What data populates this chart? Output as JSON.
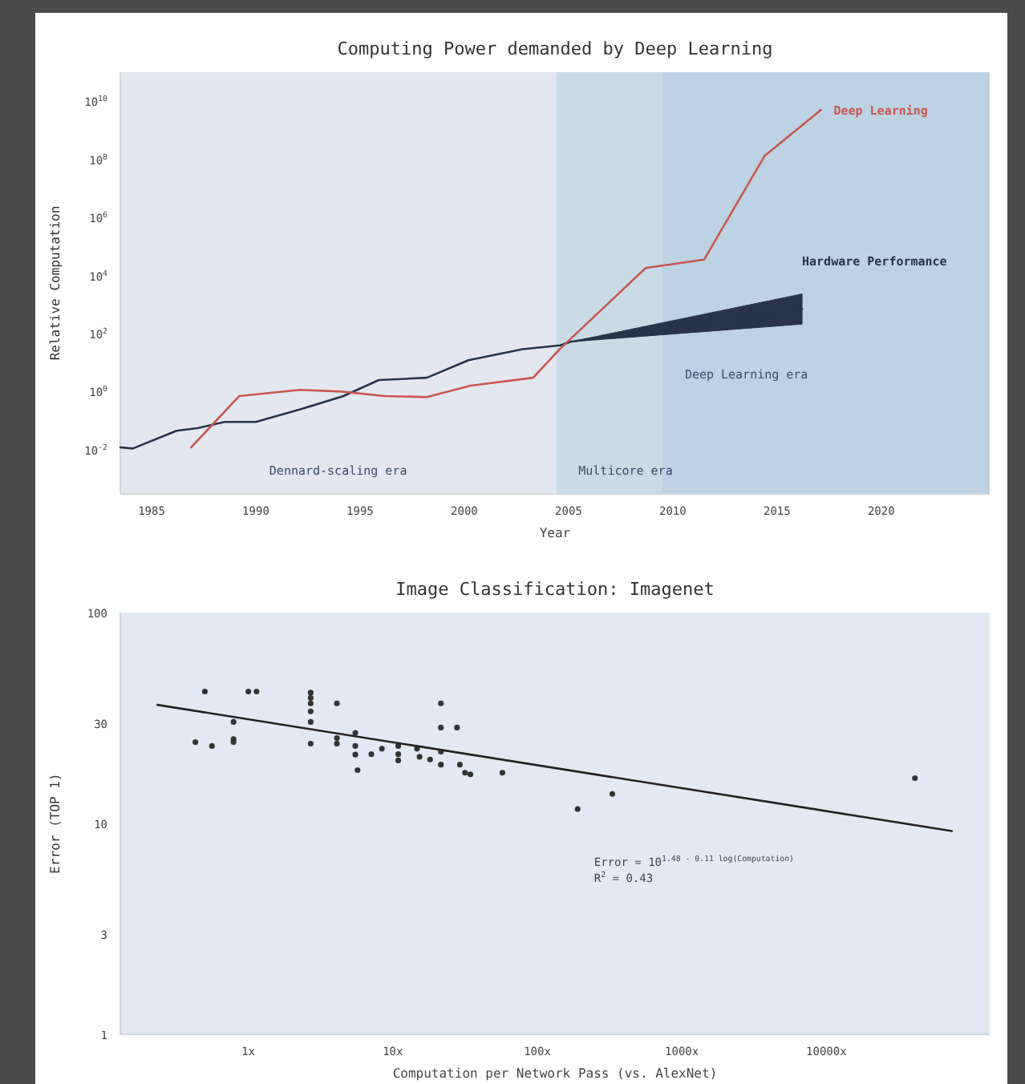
{
  "chart_data": [
    {
      "type": "line",
      "title": "Computing Power demanded by Deep Learning",
      "xlabel": "Year",
      "ylabel": "Relative Computation",
      "log": "y",
      "xlim": [
        1983.5,
        2025.2
      ],
      "xticks": [
        1985,
        1990,
        1995,
        2000,
        2005,
        2010,
        2015,
        2020
      ],
      "ylim": [
        0.0003,
        100000000000
      ],
      "yticks": [
        {
          "value": 0.01,
          "label": "10$^{-2}$"
        },
        {
          "value": 1,
          "label": "10$^{0}$"
        },
        {
          "value": 100,
          "label": "10$^{2}$"
        },
        {
          "value": 10000,
          "label": "10$^{4}$"
        },
        {
          "value": 1000000,
          "label": "10$^{6}$"
        },
        {
          "value": 100000000,
          "label": "10$^{8}$"
        },
        {
          "value": 10000000000,
          "label": "10$^{10}$"
        }
      ],
      "bands": [
        {
          "axis": "x",
          "from": 1983.5,
          "to": 2004.4,
          "label": "Dennard-scaling era",
          "color": "#e3e7ef"
        },
        {
          "axis": "x",
          "from": 2004.4,
          "to": 2025.2,
          "label": "Multicore era",
          "color": "#c9dbe7"
        },
        {
          "axis": "x",
          "from": 2009.5,
          "to": 2025.2,
          "label": "Deep Learning era",
          "color": "#bdd3e4"
        }
      ],
      "series": [
        {
          "name": "Hardware Performance",
          "color": "#27344a",
          "x": [
            1983.5,
            1984.1,
            1986.2,
            1987.2,
            1988.5,
            1990,
            1992.1,
            1994.2,
            1995.9,
            1998.2,
            2000.2,
            2002.8,
            2004.6,
            2005.1,
            2016.2
          ],
          "values": [
            0.012,
            0.011,
            0.045,
            0.055,
            0.09,
            0.09,
            0.24,
            0.7,
            2.5,
            3,
            12,
            29,
            39,
            52,
            700
          ],
          "lower": [
            null,
            null,
            null,
            null,
            null,
            null,
            null,
            null,
            null,
            null,
            null,
            null,
            null,
            52,
            210
          ],
          "upper": [
            null,
            null,
            null,
            null,
            null,
            null,
            null,
            null,
            null,
            null,
            null,
            null,
            null,
            52,
            2300
          ]
        },
        {
          "name": "Deep Learning",
          "color": "#c8554f",
          "x": [
            1986.9,
            1989.2,
            1992.1,
            1994.1,
            1996.2,
            1998.2,
            2000.3,
            2003.3,
            2004.6,
            2008.7,
            2011.5,
            2014.4,
            2017.1
          ],
          "values": [
            0.012,
            0.7,
            1.15,
            1,
            0.7,
            0.65,
            1.6,
            3,
            30,
            18000,
            35000,
            130000000,
            5000000000
          ]
        }
      ]
    },
    {
      "type": "scatter",
      "title": "Image Classification: Imagenet",
      "xlabel": "Computation per Network Pass (vs. AlexNet)",
      "ylabel": "Error (TOP 1)",
      "log": "xy",
      "marker": "circle",
      "xlim": [
        0.13,
        135000
      ],
      "xticks": [
        {
          "value": 1,
          "label": "1x"
        },
        {
          "value": 10,
          "label": "10x"
        },
        {
          "value": 100,
          "label": "100x"
        },
        {
          "value": 1000,
          "label": "1000x"
        },
        {
          "value": 10000,
          "label": "10000x"
        }
      ],
      "ylim": [
        1,
        100
      ],
      "yticks": [
        1,
        3,
        10,
        30,
        100
      ],
      "annotations": [
        "Error = 10$^{1.48 - 0.11 log(Computation)}$",
        "R$^{2}$ = 0.43"
      ],
      "series": [
        {
          "color": "#333333",
          "x": [
            0.5,
            0.43,
            0.56,
            0.79,
            0.79,
            0.79,
            1,
            1.14,
            2.7,
            2.7,
            2.7,
            2.7,
            2.7,
            2.7,
            4.1,
            4.1,
            4.1,
            5.5,
            5.5,
            5.5,
            5.7,
            7.1,
            8.4,
            10.9,
            10.9,
            10.9,
            14.7,
            15.3,
            18.1,
            21.5,
            21.5,
            21.5,
            21.5,
            27.8,
            29.1,
            31.6,
            34.4,
            57.3,
            190,
            330,
            41000
          ],
          "values": [
            42.2,
            24.3,
            23.3,
            30.3,
            25.1,
            24.3,
            42.2,
            42.2,
            41.7,
            39.4,
            37.1,
            34,
            30.3,
            23.9,
            37.1,
            25.4,
            23.9,
            26.9,
            23.3,
            21.2,
            17.9,
            21.3,
            22.6,
            23.3,
            21.3,
            19.9,
            22.6,
            20.7,
            20.1,
            37.1,
            28.5,
            21.9,
            19,
            28.5,
            19,
            17.4,
            17.1,
            17.4,
            11.7,
            13.8,
            16.4
          ]
        },
        {
          "type": "line",
          "marker": "none",
          "color": "#222222",
          "x": [
            0.235,
            74000
          ],
          "values": [
            36.5,
            9.2
          ]
        }
      ]
    }
  ]
}
